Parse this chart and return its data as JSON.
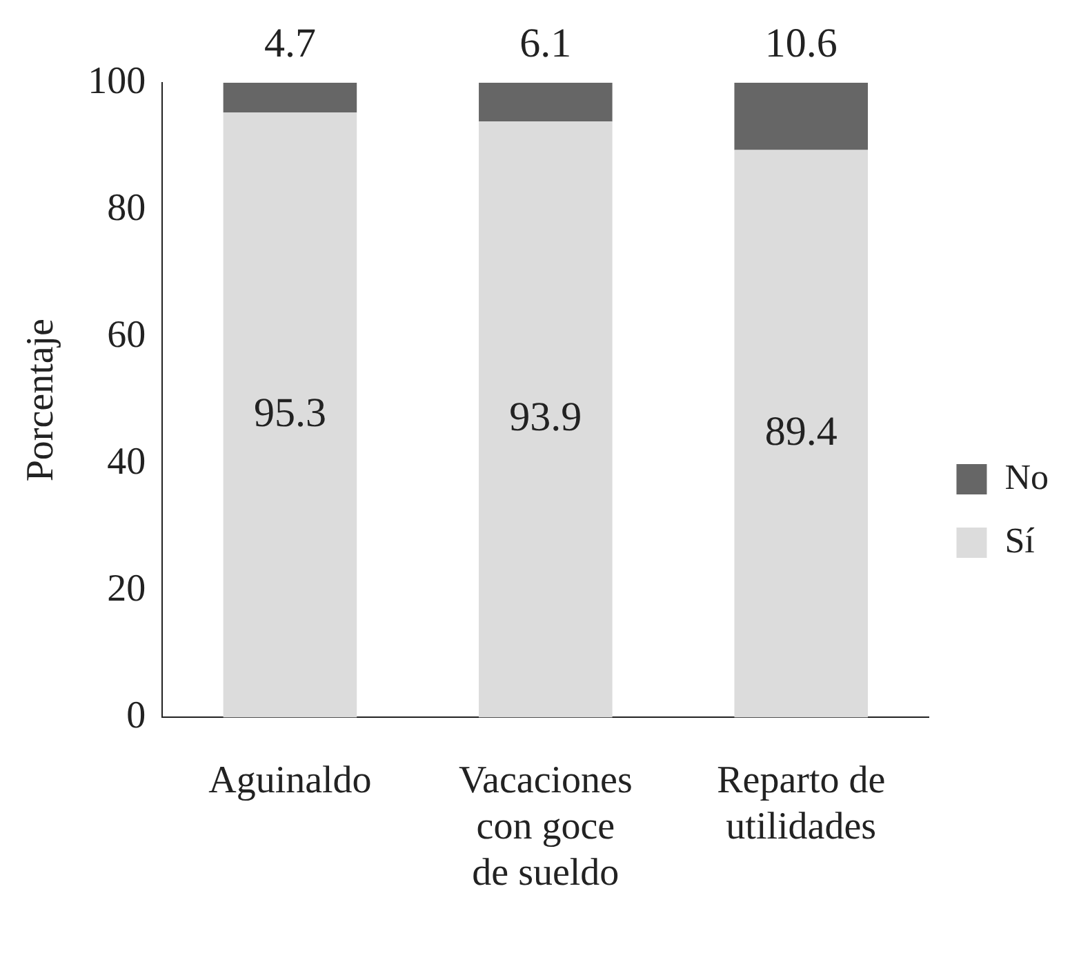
{
  "chart_data": {
    "type": "bar",
    "stacked": true,
    "ylabel": "Porcentaje",
    "categories": [
      "Aguinaldo",
      "Vacaciones con goce de sueldo",
      "Reparto de utilidades"
    ],
    "series": [
      {
        "name": "Sí",
        "color": "#dcdcdc",
        "values": [
          95.3,
          93.9,
          89.4
        ]
      },
      {
        "name": "No",
        "color": "#666666",
        "values": [
          4.7,
          6.1,
          10.6
        ]
      }
    ],
    "ylim": [
      0,
      100
    ],
    "yticks": [
      0,
      20,
      40,
      60,
      80,
      100
    ],
    "grid": false,
    "legend": "right",
    "data_labels": true
  }
}
